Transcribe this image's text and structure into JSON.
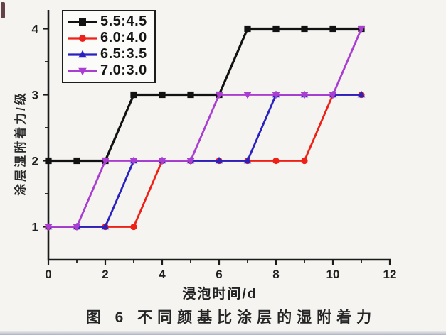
{
  "figure": {
    "background": "#f5f4f1",
    "axis_color": "#1a1a1a",
    "tick_label_color": "#1f1f1f"
  },
  "chart_data": {
    "type": "line",
    "title": "图 6  不同颜基比涂层的湿附着力",
    "xlabel": "浸泡时间/d",
    "ylabel": "涂层湿附着力/级",
    "xlim": [
      0,
      12
    ],
    "ylim": [
      0.5,
      4.28
    ],
    "grid": false,
    "legend_position": "top-left",
    "x": [
      0,
      1,
      2,
      3,
      4,
      5,
      6,
      7,
      8,
      9,
      10,
      11
    ],
    "series": [
      {
        "name": "5.5:4.5",
        "color": "#121212",
        "marker": "square",
        "values": [
          2,
          2,
          2,
          3,
          3,
          3,
          3,
          4,
          4,
          4,
          4,
          4
        ]
      },
      {
        "name": "6.0:4.0",
        "color": "#ee2118",
        "marker": "circle",
        "values": [
          1,
          1,
          1,
          1,
          2,
          2,
          2,
          2,
          2,
          2,
          3,
          3
        ]
      },
      {
        "name": "6.5:3.5",
        "color": "#2a22c0",
        "marker": "triangle-up",
        "values": [
          1,
          1,
          1,
          2,
          2,
          2,
          2,
          2,
          3,
          3,
          3,
          3
        ]
      },
      {
        "name": "7.0:3.0",
        "color": "#a93ed0",
        "marker": "triangle-down",
        "values": [
          1,
          1,
          2,
          2,
          2,
          2,
          3,
          3,
          3,
          3,
          3,
          4
        ]
      }
    ],
    "xticks_major": [
      0,
      2,
      4,
      6,
      8,
      10,
      12
    ],
    "xticks_minor": [
      1,
      3,
      5,
      7,
      9,
      11
    ],
    "yticks_major": [
      1,
      2,
      3,
      4
    ],
    "yticks_minor": [
      1.5,
      2.5,
      3.5
    ]
  }
}
